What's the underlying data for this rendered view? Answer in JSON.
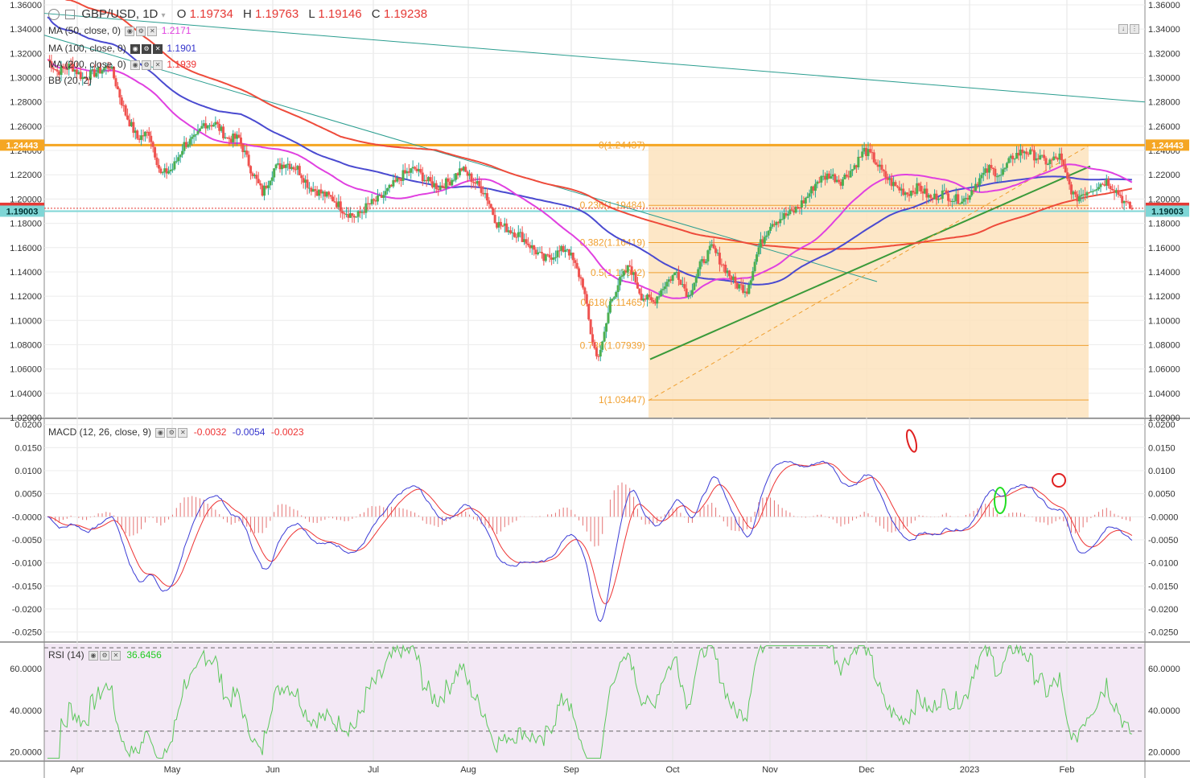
{
  "symbol": {
    "title": "GBP/USD, 1D",
    "o_label": "O",
    "o_value": "1.19734",
    "h_label": "H",
    "h_value": "1.19763",
    "l_label": "L",
    "l_value": "1.19146",
    "c_label": "C",
    "c_value": "1.19238"
  },
  "indicators": [
    {
      "label": "MA (50, close, 0)",
      "value": "1.2171",
      "color": "#e040e0"
    },
    {
      "label": "MA (100, close, 0)",
      "value": "1.1901",
      "color": "#3333cc"
    },
    {
      "label": "MA (200, close, 0)",
      "value": "1.1939",
      "color": "#ee3333"
    },
    {
      "label": "BB (20, 2)",
      "value": "",
      "color": "#333333"
    }
  ],
  "macd": {
    "label": "MACD (12, 26, close, 9)",
    "v1": "-0.0032",
    "v2": "-0.0054",
    "v3": "-0.0023",
    "c1": "#ee3333",
    "c2": "#3333cc",
    "c3": "#ee3333"
  },
  "rsi": {
    "label": "RSI (14)",
    "value": "36.6456",
    "color": "#22cc22"
  },
  "price_badges": [
    {
      "text": "1.24443",
      "price": 1.24443,
      "color": "#f5a623",
      "text_color": "#ffffff"
    },
    {
      "text": "1.19238",
      "price": 1.19238,
      "color": "#e53935",
      "text_color": "#ffffff"
    },
    {
      "text": "1.19003",
      "price": 1.19003,
      "color": "#7fd6d6",
      "text_color": "#003333"
    }
  ],
  "chart_data": {
    "type": "candlestick",
    "price_axis": {
      "min": 1.02,
      "max": 1.36,
      "ticks": [
        "1.02000",
        "1.04000",
        "1.06000",
        "1.08000",
        "1.10000",
        "1.12000",
        "1.14000",
        "1.16000",
        "1.18000",
        "1.20000",
        "1.22000",
        "1.24000",
        "1.26000",
        "1.28000",
        "1.30000",
        "1.32000",
        "1.34000",
        "1.36000"
      ]
    },
    "macd_axis": {
      "min": -0.027,
      "max": 0.021,
      "ticks": [
        "0.0200",
        "0.0150",
        "0.0100",
        "0.0050",
        "-0.0000",
        "-0.0050",
        "-0.0100",
        "-0.0150",
        "-0.0200",
        "-0.0250"
      ]
    },
    "rsi_axis": {
      "min": 16,
      "max": 72,
      "ticks": [
        "60.0000",
        "40.0000",
        "20.0000"
      ],
      "upper_band": 70,
      "lower_band": 30
    },
    "months": [
      "Apr",
      "May",
      "Jun",
      "Jul",
      "Aug",
      "Sep",
      "Oct",
      "Nov",
      "Dec",
      "2023",
      "Feb"
    ],
    "fib_levels": [
      {
        "ratio": "0",
        "price": 1.24437,
        "label": "0(1.24437)"
      },
      {
        "ratio": "0.236",
        "price": 1.19484,
        "label": "0.236(1.19484)"
      },
      {
        "ratio": "0.382",
        "price": 1.16419,
        "label": "0.382(1.16419)"
      },
      {
        "ratio": "0.5",
        "price": 1.13942,
        "label": "0.5(1.13942)"
      },
      {
        "ratio": "0.618",
        "price": 1.11465,
        "label": "0.618(1.11465)"
      },
      {
        "ratio": "0.786",
        "price": 1.07939,
        "label": "0.786(1.07939)"
      },
      {
        "ratio": "1",
        "price": 1.03447,
        "label": "1(1.03447)"
      }
    ],
    "horizontal_lines": [
      1.24443,
      1.19003
    ],
    "close_series_keypoints": [
      [
        0,
        1.315
      ],
      [
        5,
        1.305
      ],
      [
        12,
        1.31
      ],
      [
        18,
        1.3
      ],
      [
        26,
        1.305
      ],
      [
        32,
        1.31
      ],
      [
        40,
        1.27
      ],
      [
        46,
        1.25
      ],
      [
        52,
        1.255
      ],
      [
        58,
        1.22
      ],
      [
        64,
        1.225
      ],
      [
        70,
        1.245
      ],
      [
        76,
        1.25
      ],
      [
        80,
        1.262
      ],
      [
        86,
        1.262
      ],
      [
        92,
        1.25
      ],
      [
        98,
        1.25
      ],
      [
        104,
        1.225
      ],
      [
        110,
        1.205
      ],
      [
        116,
        1.225
      ],
      [
        122,
        1.23
      ],
      [
        128,
        1.225
      ],
      [
        134,
        1.21
      ],
      [
        140,
        1.205
      ],
      [
        146,
        1.2
      ],
      [
        152,
        1.19
      ],
      [
        158,
        1.185
      ],
      [
        164,
        1.195
      ],
      [
        170,
        1.2
      ],
      [
        176,
        1.21
      ],
      [
        182,
        1.22
      ],
      [
        188,
        1.225
      ],
      [
        194,
        1.215
      ],
      [
        200,
        1.21
      ],
      [
        206,
        1.215
      ],
      [
        212,
        1.225
      ],
      [
        218,
        1.215
      ],
      [
        224,
        1.205
      ],
      [
        230,
        1.18
      ],
      [
        236,
        1.175
      ],
      [
        242,
        1.17
      ],
      [
        248,
        1.16
      ],
      [
        254,
        1.15
      ],
      [
        260,
        1.155
      ],
      [
        266,
        1.16
      ],
      [
        270,
        1.145
      ],
      [
        274,
        1.13
      ],
      [
        278,
        1.09
      ],
      [
        281,
        1.07
      ],
      [
        284,
        1.08
      ],
      [
        288,
        1.115
      ],
      [
        292,
        1.13
      ],
      [
        298,
        1.145
      ],
      [
        304,
        1.12
      ],
      [
        310,
        1.115
      ],
      [
        316,
        1.13
      ],
      [
        322,
        1.14
      ],
      [
        328,
        1.12
      ],
      [
        334,
        1.145
      ],
      [
        340,
        1.16
      ],
      [
        346,
        1.145
      ],
      [
        352,
        1.13
      ],
      [
        358,
        1.125
      ],
      [
        364,
        1.16
      ],
      [
        370,
        1.18
      ],
      [
        376,
        1.185
      ],
      [
        382,
        1.19
      ],
      [
        388,
        1.2
      ],
      [
        394,
        1.215
      ],
      [
        400,
        1.22
      ],
      [
        406,
        1.215
      ],
      [
        412,
        1.225
      ],
      [
        418,
        1.24
      ],
      [
        422,
        1.235
      ],
      [
        428,
        1.22
      ],
      [
        434,
        1.21
      ],
      [
        440,
        1.205
      ],
      [
        446,
        1.21
      ],
      [
        452,
        1.2
      ],
      [
        458,
        1.205
      ],
      [
        464,
        1.2
      ],
      [
        470,
        1.2
      ],
      [
        476,
        1.215
      ],
      [
        482,
        1.225
      ],
      [
        488,
        1.22
      ],
      [
        494,
        1.235
      ],
      [
        500,
        1.24
      ],
      [
        506,
        1.235
      ],
      [
        512,
        1.23
      ],
      [
        518,
        1.235
      ],
      [
        522,
        1.215
      ],
      [
        526,
        1.2
      ],
      [
        530,
        1.205
      ],
      [
        536,
        1.21
      ],
      [
        542,
        1.215
      ],
      [
        548,
        1.205
      ],
      [
        552,
        1.195
      ],
      [
        555,
        1.192
      ]
    ]
  }
}
